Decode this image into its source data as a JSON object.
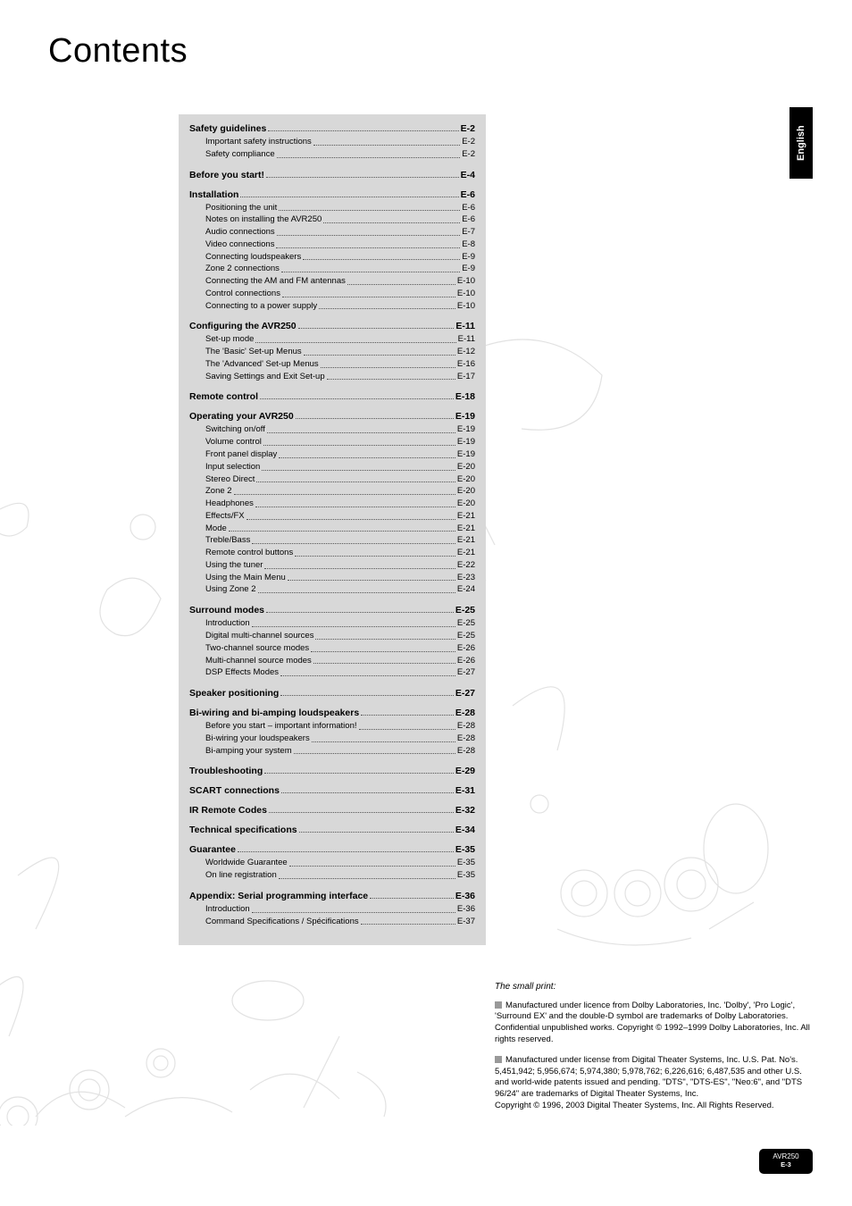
{
  "page_title": "Contents",
  "language_tab": "English",
  "footer": {
    "model": "AVR250",
    "page": "E-3"
  },
  "small_print": {
    "heading": "The small print:",
    "blocks": [
      "Manufactured under licence from Dolby Laboratories, Inc. 'Dolby', 'Pro Logic', 'Surround EX' and the double-D symbol are trademarks of Dolby Laboratories.\nConfidential unpublished works. Copyright © 1992–1999 Dolby Laboratories, Inc. All rights reserved.",
      "Manufactured under license from Digital Theater Systems, Inc. U.S. Pat. No's. 5,451,942; 5,956,674; 5,974,380; 5,978,762; 6,226,616; 6,487,535 and other U.S. and world-wide patents issued and pending. \"DTS\", \"DTS-ES\", \"Neo:6\", and \"DTS 96/24\" are trademarks of Digital Theater Systems, Inc.\nCopyright © 1996, 2003 Digital Theater Systems, Inc. All Rights Reserved."
    ]
  },
  "colors": {
    "toc_background": "#d8d8d8",
    "page_background": "#ffffff",
    "text": "#000000",
    "tab_bg": "#000000",
    "tab_fg": "#ffffff",
    "bullet": "#999999",
    "dots": "#555555"
  },
  "typography": {
    "title_fontsize": 38,
    "heading_fontsize": 10.5,
    "body_fontsize": 9.5,
    "font_family": "Verdana, Arial, sans-serif"
  },
  "toc": [
    {
      "title": "Safety guidelines",
      "page": "E-2",
      "items": [
        {
          "label": "Important safety instructions",
          "page": "E-2"
        },
        {
          "label": "Safety compliance",
          "page": "E-2"
        }
      ]
    },
    {
      "title": "Before you start!",
      "page": "E-4",
      "items": []
    },
    {
      "title": "Installation",
      "page": "E-6",
      "items": [
        {
          "label": "Positioning the unit",
          "page": "E-6"
        },
        {
          "label": "Notes on installing the AVR250",
          "page": "E-6"
        },
        {
          "label": "Audio connections",
          "page": "E-7"
        },
        {
          "label": "Video connections",
          "page": "E-8"
        },
        {
          "label": "Connecting loudspeakers",
          "page": "E-9"
        },
        {
          "label": "Zone 2 connections",
          "page": "E-9"
        },
        {
          "label": "Connecting the AM and FM antennas",
          "page": "E-10"
        },
        {
          "label": "Control connections",
          "page": "E-10"
        },
        {
          "label": "Connecting to a power supply",
          "page": "E-10"
        }
      ]
    },
    {
      "title": "Configuring the AVR250",
      "page": "E-11",
      "items": [
        {
          "label": "Set-up mode",
          "page": "E-11"
        },
        {
          "label": "The 'Basic' Set-up Menus",
          "page": "E-12"
        },
        {
          "label": "The 'Advanced' Set-up Menus",
          "page": "E-16"
        },
        {
          "label": "Saving Settings and Exit Set-up",
          "page": "E-17"
        }
      ]
    },
    {
      "title": "Remote control",
      "page": "E-18",
      "items": []
    },
    {
      "title": "Operating your AVR250",
      "page": "E-19",
      "items": [
        {
          "label": "Switching on/off",
          "page": "E-19"
        },
        {
          "label": "Volume control",
          "page": "E-19"
        },
        {
          "label": "Front panel display",
          "page": "E-19"
        },
        {
          "label": "Input selection",
          "page": "E-20"
        },
        {
          "label": "Stereo Direct",
          "page": "E-20"
        },
        {
          "label": "Zone 2",
          "page": "E-20"
        },
        {
          "label": "Headphones",
          "page": "E-20"
        },
        {
          "label": "Effects/FX",
          "page": "E-21"
        },
        {
          "label": "Mode",
          "page": "E-21"
        },
        {
          "label": "Treble/Bass",
          "page": "E-21"
        },
        {
          "label": "Remote control buttons",
          "page": "E-21"
        },
        {
          "label": "Using the tuner",
          "page": "E-22"
        },
        {
          "label": "Using the Main Menu",
          "page": "E-23"
        },
        {
          "label": "Using Zone 2",
          "page": "E-24"
        }
      ]
    },
    {
      "title": "Surround modes",
      "page": "E-25",
      "items": [
        {
          "label": "Introduction",
          "page": "E-25"
        },
        {
          "label": "Digital multi-channel sources",
          "page": "E-25"
        },
        {
          "label": "Two-channel source modes",
          "page": "E-26"
        },
        {
          "label": "Multi-channel source modes",
          "page": "E-26"
        },
        {
          "label": "DSP Effects Modes",
          "page": "E-27"
        }
      ]
    },
    {
      "title": "Speaker positioning",
      "page": "E-27",
      "items": []
    },
    {
      "title": "Bi-wiring and bi-amping loudspeakers",
      "page": "E-28",
      "items": [
        {
          "label": "Before you start – important information!",
          "page": "E-28"
        },
        {
          "label": "Bi-wiring your loudspeakers",
          "page": "E-28"
        },
        {
          "label": "Bi-amping your system",
          "page": "E-28"
        }
      ]
    },
    {
      "title": "Troubleshooting",
      "page": "E-29",
      "items": []
    },
    {
      "title": "SCART connections",
      "page": "E-31",
      "items": []
    },
    {
      "title": "IR Remote Codes",
      "page": "E-32",
      "items": []
    },
    {
      "title": "Technical specifications",
      "page": "E-34",
      "items": []
    },
    {
      "title": "Guarantee",
      "page": "E-35",
      "items": [
        {
          "label": "Worldwide Guarantee",
          "page": "E-35"
        },
        {
          "label": "On line registration",
          "page": "E-35"
        }
      ]
    },
    {
      "title": "Appendix: Serial programming interface",
      "page": "E-36",
      "items": [
        {
          "label": "Introduction",
          "page": "E-36"
        },
        {
          "label": "Command Specifications / Spécifications",
          "page": "E-37"
        }
      ]
    }
  ]
}
